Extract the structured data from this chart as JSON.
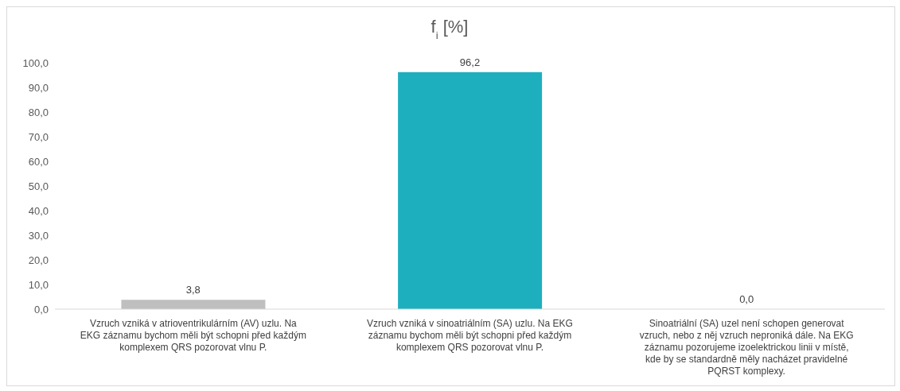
{
  "chart_data": {
    "type": "bar",
    "title": "f$_{i}$ [%]",
    "categories": [
      "Vzruch vzniká v atrioventrikulárním (AV) uzlu. Na EKG záznamu bychom měli být schopni před každým komplexem QRS pozorovat vlnu P.",
      "Vzruch vzniká v sinoatriálním (SA) uzlu. Na EKG záznamu bychom měli být schopni před každým komplexem QRS pozorovat vlnu P.",
      "Sinoatriální (SA) uzel není schopen generovat vzruch, nebo z něj vzruch neproniká dále. Na EKG záznamu pozorujeme izoelektrickou linii v místě, kde by se standardně měly nacházet pravidelné PQRST komplexy."
    ],
    "values": [
      3.8,
      96.2,
      0.0
    ],
    "colors": [
      "#bfbfbf",
      "#1eafbf",
      "#bfbfbf"
    ],
    "value_labels": [
      "3,8",
      "96,2",
      "0,0"
    ],
    "ylim": [
      0,
      100
    ],
    "yticks": [
      {
        "value": 0,
        "label": "0,0"
      },
      {
        "value": 10,
        "label": "10,0"
      },
      {
        "value": 20,
        "label": "20,0"
      },
      {
        "value": 30,
        "label": "30,0"
      },
      {
        "value": 40,
        "label": "40,0"
      },
      {
        "value": 50,
        "label": "50,0"
      },
      {
        "value": 60,
        "label": "60,0"
      },
      {
        "value": 70,
        "label": "70,0"
      },
      {
        "value": 80,
        "label": "80,0"
      },
      {
        "value": 90,
        "label": "90,0"
      },
      {
        "value": 100,
        "label": "100,0"
      }
    ]
  }
}
